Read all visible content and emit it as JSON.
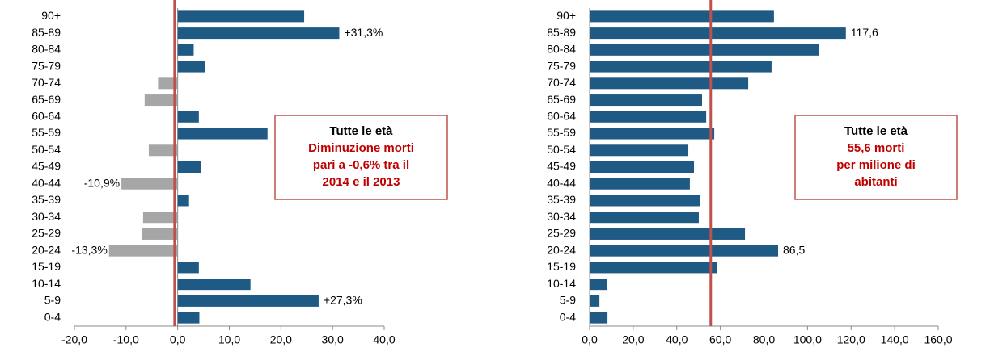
{
  "chart_data": [
    {
      "type": "bar",
      "orientation": "horizontal",
      "categories": [
        "90+",
        "85-89",
        "80-84",
        "75-79",
        "70-74",
        "65-69",
        "60-64",
        "55-59",
        "50-54",
        "45-49",
        "40-44",
        "35-39",
        "30-34",
        "25-29",
        "20-24",
        "15-19",
        "10-14",
        "5-9",
        "0-4"
      ],
      "values": [
        24.5,
        31.3,
        3.1,
        5.3,
        -3.8,
        -6.4,
        4.1,
        17.4,
        -5.6,
        4.5,
        -10.9,
        2.2,
        -6.7,
        -6.9,
        -13.3,
        4.1,
        14.1,
        27.3,
        4.2
      ],
      "value_labels": [
        null,
        "+31,3%",
        null,
        null,
        null,
        null,
        null,
        null,
        null,
        null,
        "-10,9%",
        null,
        null,
        null,
        "-13,3%",
        null,
        null,
        "+27,3%",
        null
      ],
      "colors": {
        "positive": "#1f5a85",
        "negative": "#a6a6a6"
      },
      "xlim": [
        -20,
        40
      ],
      "xticks": [
        {
          "value": -20,
          "label": "-20,0"
        },
        {
          "value": -10,
          "label": "-10,0"
        },
        {
          "value": 0,
          "label": "0,0"
        },
        {
          "value": 10,
          "label": "10,0"
        },
        {
          "value": 20,
          "label": "20,0"
        },
        {
          "value": 30,
          "label": "30,0"
        },
        {
          "value": 40,
          "label": "40,0"
        }
      ],
      "reference_line": {
        "value": -0.6,
        "color": "#c0504d"
      },
      "annotation": {
        "lines": [
          "Tutte le età",
          "Diminuzione morti",
          "pari a -0,6% tra il",
          "2014 e il 2013"
        ]
      }
    },
    {
      "type": "bar",
      "orientation": "horizontal",
      "categories": [
        "90+",
        "85-89",
        "80-84",
        "75-79",
        "70-74",
        "65-69",
        "60-64",
        "55-59",
        "50-54",
        "45-49",
        "40-44",
        "35-39",
        "30-34",
        "25-29",
        "20-24",
        "15-19",
        "10-14",
        "5-9",
        "0-4"
      ],
      "values": [
        84.6,
        117.6,
        105.4,
        83.5,
        72.8,
        51.6,
        53.5,
        57.2,
        45.3,
        47.9,
        46.0,
        50.5,
        50.1,
        71.3,
        86.5,
        58.3,
        7.8,
        4.5,
        8.2
      ],
      "value_labels": [
        null,
        "117,6",
        null,
        null,
        null,
        null,
        null,
        null,
        null,
        null,
        null,
        null,
        null,
        null,
        "86,5",
        null,
        null,
        null,
        null
      ],
      "color": "#1f5a85",
      "xlim": [
        0,
        160
      ],
      "xticks": [
        {
          "value": 0,
          "label": "0,0"
        },
        {
          "value": 20,
          "label": "20,0"
        },
        {
          "value": 40,
          "label": "40,0"
        },
        {
          "value": 60,
          "label": "60,0"
        },
        {
          "value": 80,
          "label": "80,0"
        },
        {
          "value": 100,
          "label": "100,0"
        },
        {
          "value": 120,
          "label": "120,0"
        },
        {
          "value": 140,
          "label": "140,0"
        },
        {
          "value": 160,
          "label": "160,0"
        }
      ],
      "reference_line": {
        "value": 55.6,
        "color": "#c0504d"
      },
      "annotation": {
        "lines": [
          "Tutte le età",
          "55,6 morti",
          "per milione di",
          "abitanti"
        ]
      }
    }
  ]
}
